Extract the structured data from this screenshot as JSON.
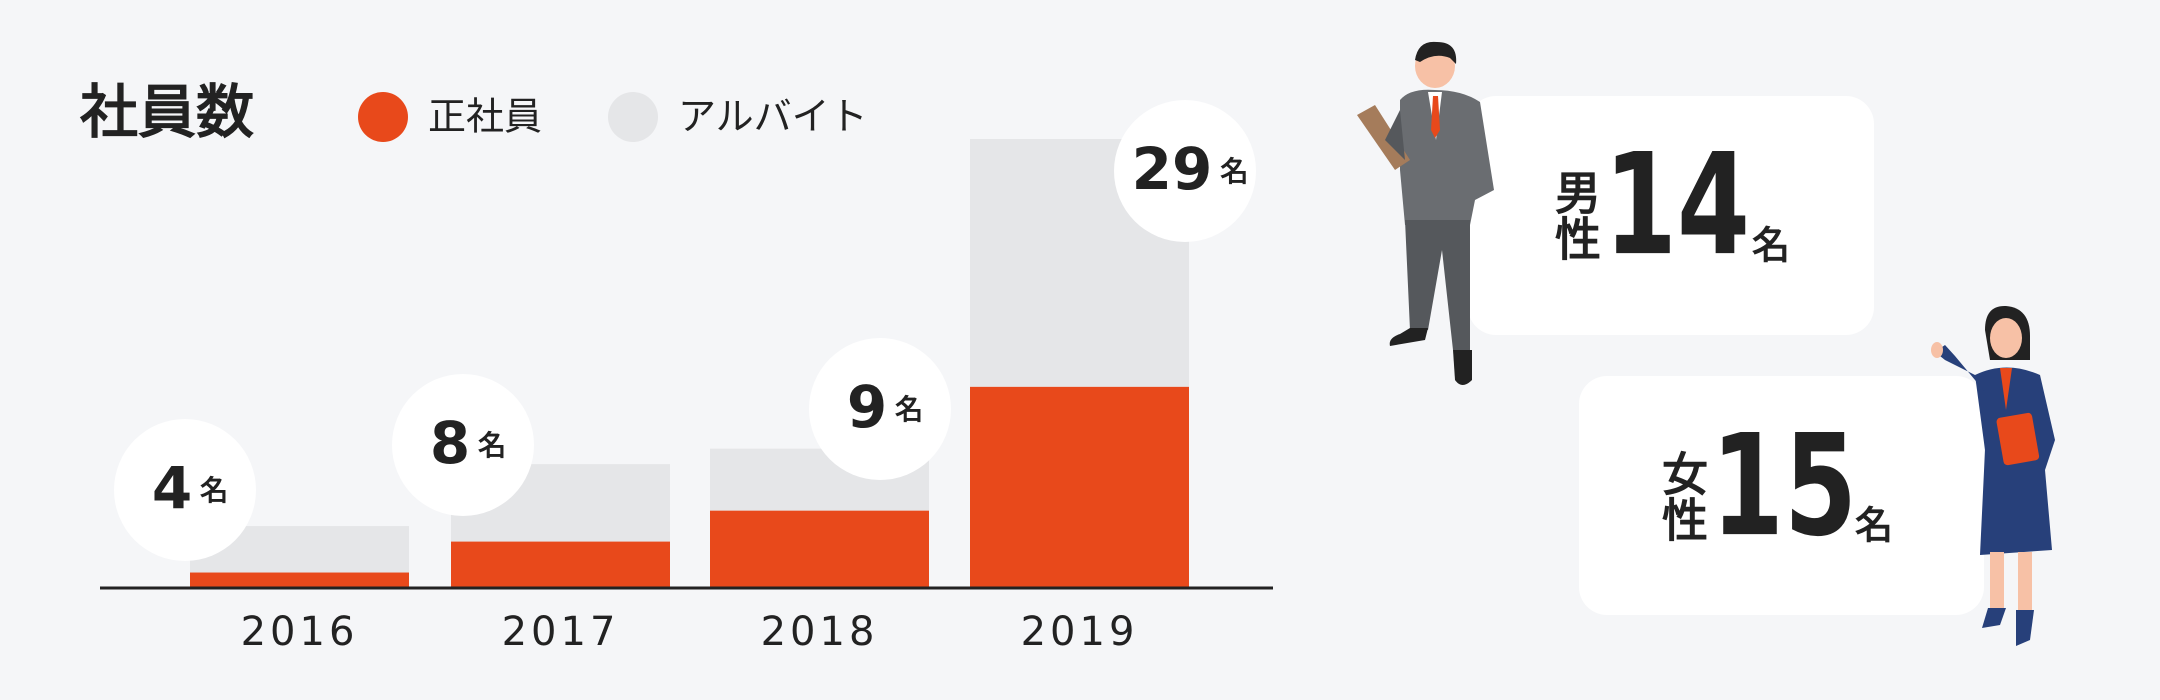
{
  "chart_data": {
    "type": "bar",
    "stacked": true,
    "title": "社員数",
    "categories": [
      "2016",
      "2017",
      "2018",
      "2019"
    ],
    "series": [
      {
        "name": "正社員",
        "color": "#e8491b",
        "values": [
          1,
          3,
          5,
          13
        ]
      },
      {
        "name": "アルバイト",
        "color": "#e5e6e8",
        "values": [
          3,
          5,
          4,
          16
        ]
      }
    ],
    "totals": [
      4,
      8,
      9,
      29
    ],
    "unit": "名"
  },
  "gender": [
    {
      "label": "男性",
      "value": 14,
      "unit": "名"
    },
    {
      "label": "女性",
      "value": 15,
      "unit": "名"
    }
  ]
}
